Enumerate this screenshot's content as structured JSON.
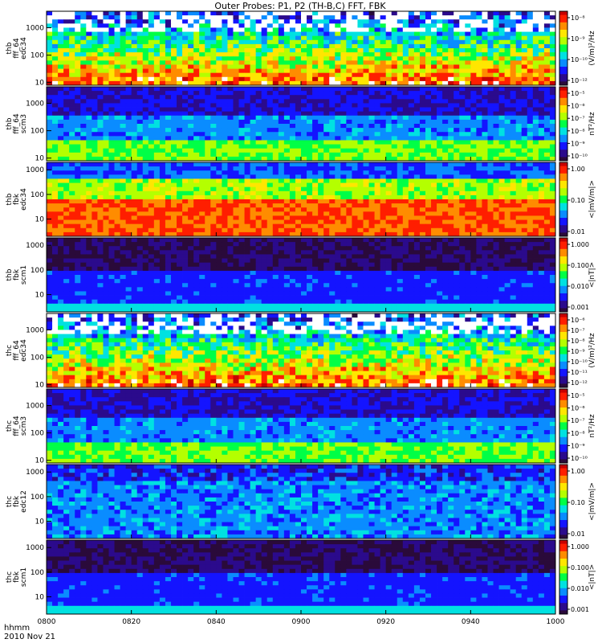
{
  "title": "Outer Probes: P1, P2 (TH-B,C) FFT, FBK",
  "time_axis": {
    "label_line1": "hhmm",
    "label_line2": "2010 Nov 21",
    "ticks": [
      "0800",
      "0820",
      "0840",
      "0900",
      "0920",
      "0940",
      "1000"
    ],
    "start": "0800",
    "end": "1000"
  },
  "y_ticks": {
    "three_decade": [
      "10",
      "100",
      "1000"
    ]
  },
  "chart_data": [
    {
      "type": "heatmap",
      "probe": "thb",
      "instrument": "fff_64",
      "quantity": "edc34",
      "ylabel_lines": [
        "thb",
        "fff_64",
        "edc34"
      ],
      "yscale": "log",
      "ylim_hz": [
        8,
        4000
      ],
      "y_ticks": [
        "10",
        "100",
        "1000"
      ],
      "colorbar_label": "(V/m)²/Hz",
      "colorbar_scale": "log",
      "colorbar_ticks": [
        "10⁻⁸",
        "10⁻⁹",
        "10⁻¹⁰",
        "10⁻¹²"
      ],
      "colorbar_range_exp": [
        -12,
        -8
      ]
    },
    {
      "type": "heatmap",
      "probe": "thb",
      "instrument": "fff_64",
      "quantity": "scm3",
      "ylabel_lines": [
        "thb",
        "fff_64",
        "scm3"
      ],
      "yscale": "log",
      "ylim_hz": [
        8,
        4000
      ],
      "y_ticks": [
        "10",
        "100",
        "1000"
      ],
      "colorbar_label": "nT²/Hz",
      "colorbar_scale": "log",
      "colorbar_ticks": [
        "10⁻⁵",
        "10⁻⁶",
        "10⁻⁷",
        "10⁻⁸",
        "10⁻⁹",
        "10⁻¹⁰"
      ],
      "colorbar_range_exp": [
        -10,
        -5
      ]
    },
    {
      "type": "heatmap",
      "probe": "thb",
      "instrument": "fbk",
      "quantity": "edc34",
      "ylabel_lines": [
        "thb",
        "fbk",
        "edc34"
      ],
      "yscale": "log",
      "ylim_hz": [
        2,
        2000
      ],
      "y_ticks": [
        "10",
        "100",
        "1000"
      ],
      "colorbar_label": "<|mV/m|>",
      "colorbar_scale": "log",
      "colorbar_ticks": [
        "1.00",
        "0.10",
        "0.01"
      ],
      "colorbar_range": [
        0.005,
        1.5
      ]
    },
    {
      "type": "heatmap",
      "probe": "thb",
      "instrument": "fbk",
      "quantity": "scm1",
      "ylabel_lines": [
        "thb",
        "fbk",
        "scm1"
      ],
      "yscale": "log",
      "ylim_hz": [
        2,
        2000
      ],
      "y_ticks": [
        "10",
        "100",
        "1000"
      ],
      "colorbar_label": "<|nT|>",
      "colorbar_scale": "log",
      "colorbar_ticks": [
        "1.000",
        "0.100",
        "0.010",
        "0.001"
      ],
      "colorbar_range": [
        0.001,
        1.0
      ]
    },
    {
      "type": "heatmap",
      "probe": "thc",
      "instrument": "fff_64",
      "quantity": "edc34",
      "ylabel_lines": [
        "thc",
        "fff_64",
        "edc34"
      ],
      "yscale": "log",
      "ylim_hz": [
        8,
        4000
      ],
      "y_ticks": [
        "10",
        "100",
        "1000"
      ],
      "colorbar_label": "(V/m)²/Hz",
      "colorbar_scale": "log",
      "colorbar_ticks": [
        "10⁻⁶",
        "10⁻⁷",
        "10⁻⁸",
        "10⁻⁹",
        "10⁻¹⁰",
        "10⁻¹¹",
        "10⁻¹²"
      ],
      "colorbar_range_exp": [
        -12,
        -6
      ]
    },
    {
      "type": "heatmap",
      "probe": "thc",
      "instrument": "fff_64",
      "quantity": "scm3",
      "ylabel_lines": [
        "thc",
        "fff_64",
        "scm3"
      ],
      "yscale": "log",
      "ylim_hz": [
        8,
        4000
      ],
      "y_ticks": [
        "10",
        "100",
        "1000"
      ],
      "colorbar_label": "nT²/Hz",
      "colorbar_scale": "log",
      "colorbar_ticks": [
        "10⁻⁵",
        "10⁻⁶",
        "10⁻⁷",
        "10⁻⁸",
        "10⁻⁹",
        "10⁻¹⁰"
      ],
      "colorbar_range_exp": [
        -10,
        -5
      ]
    },
    {
      "type": "heatmap",
      "probe": "thc",
      "instrument": "fbk",
      "quantity": "edc12",
      "ylabel_lines": [
        "thc",
        "fbk",
        "edc12"
      ],
      "yscale": "log",
      "ylim_hz": [
        2,
        2000
      ],
      "y_ticks": [
        "10",
        "100",
        "1000"
      ],
      "colorbar_label": "<|mV/m|>",
      "colorbar_scale": "log",
      "colorbar_ticks": [
        "1.00",
        "0.10",
        "0.01"
      ],
      "colorbar_range": [
        0.005,
        1.5
      ]
    },
    {
      "type": "heatmap",
      "probe": "thc",
      "instrument": "fbk",
      "quantity": "scm1",
      "ylabel_lines": [
        "thc",
        "fbk",
        "scm1"
      ],
      "yscale": "log",
      "ylim_hz": [
        2,
        2000
      ],
      "y_ticks": [
        "10",
        "100",
        "1000"
      ],
      "colorbar_label": "<|nT|>",
      "colorbar_scale": "log",
      "colorbar_ticks": [
        "1.000",
        "0.100",
        "0.010",
        "0.001"
      ],
      "colorbar_range": [
        0.001,
        1.0
      ]
    }
  ],
  "colormap_stops": [
    "#2a0a3a",
    "#2b0a8c",
    "#1414ff",
    "#0a8cff",
    "#00e1e1",
    "#00ff46",
    "#b4ff00",
    "#ffe600",
    "#ff8c00",
    "#ff1e00",
    "#c80000"
  ]
}
